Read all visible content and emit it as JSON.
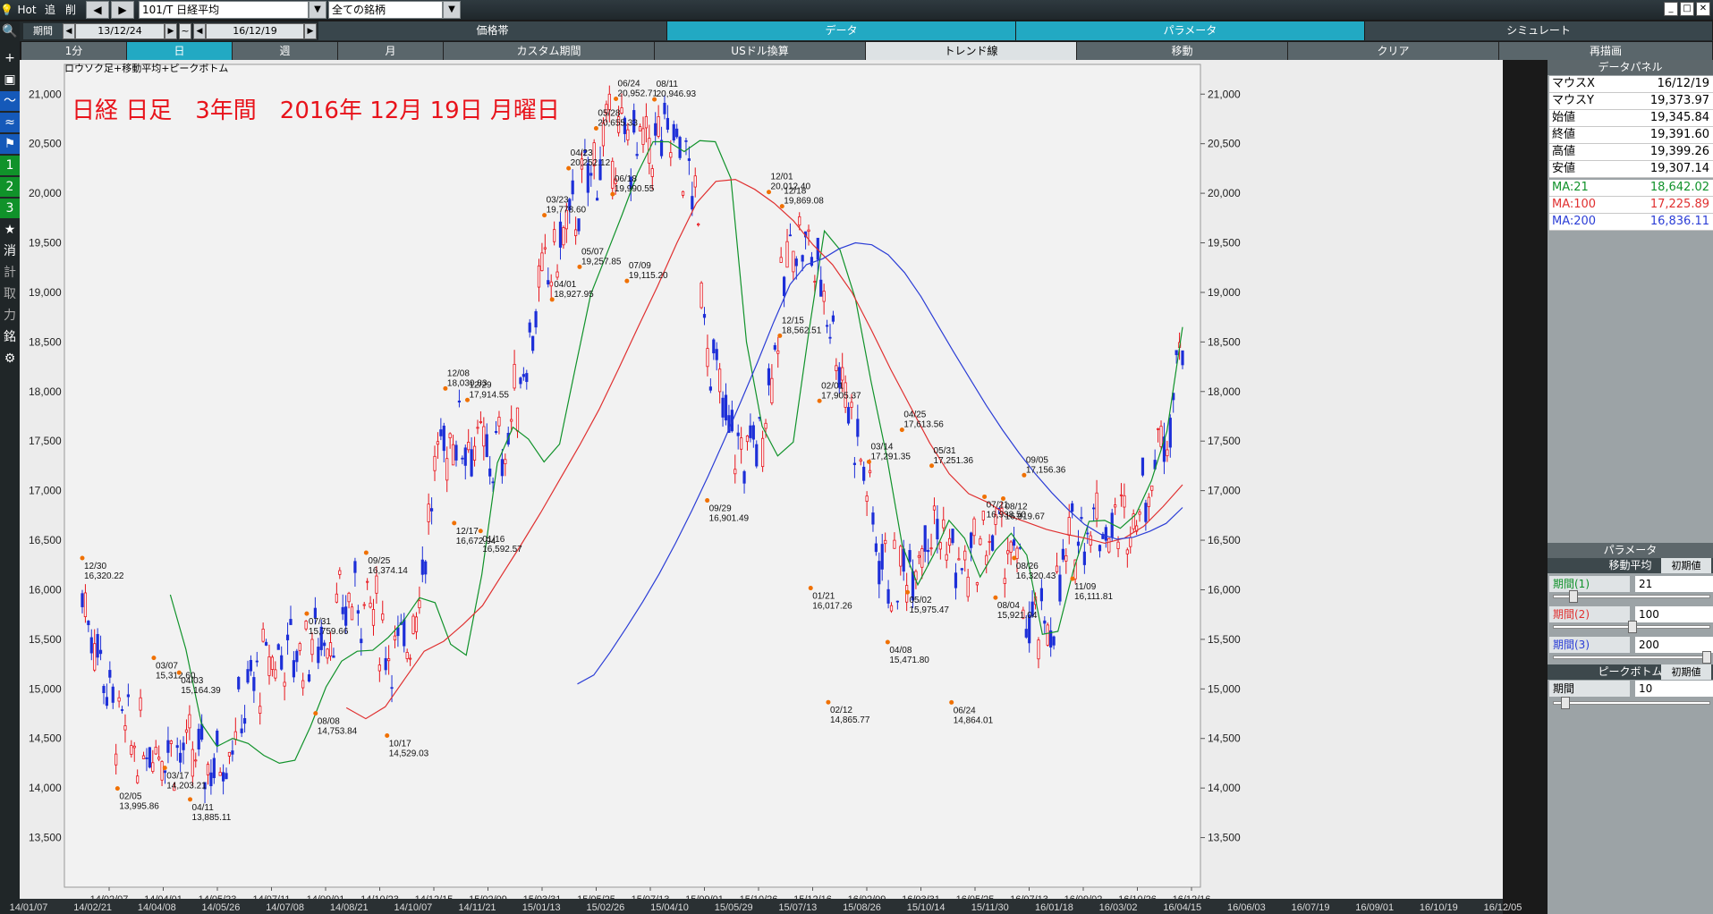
{
  "toolbar": {
    "hot": "Hot",
    "prev": "追",
    "del": "削",
    "symbol": "101/T 日経平均",
    "filter": "全ての銘柄"
  },
  "period": {
    "label": "期間",
    "from": "13/12/24",
    "sep": "~",
    "to": "16/12/19"
  },
  "menu_tabs": [
    "価格帯",
    "データ",
    "パラメータ",
    "シミュレート"
  ],
  "period_tabs": [
    "1分",
    "日",
    "週",
    "月",
    "カスタム期間",
    "USドル換算"
  ],
  "tool_tabs": [
    "トレンド線",
    "移動",
    "クリア",
    "再描画"
  ],
  "left_tools": {
    "one": "1",
    "two": "2",
    "three": "3",
    "k1": "消",
    "k2": "計",
    "k3": "取",
    "k4": "力",
    "k5": "銘"
  },
  "chart": {
    "caption": "ロウソク足+移動平均+ピークボトム",
    "title": "日経 日足　3年間　2016年 12月 19日 月曜日"
  },
  "chart_data": {
    "type": "candlestick",
    "title": "日経 日足　3年間　2016年 12月 19日 月曜日",
    "ylim": [
      13000,
      21300
    ],
    "y_ticks": [
      "13,500",
      "14,000",
      "14,500",
      "15,000",
      "15,500",
      "16,000",
      "16,500",
      "17,000",
      "17,500",
      "18,000",
      "18,500",
      "19,000",
      "19,500",
      "20,000",
      "20,500",
      "21,000"
    ],
    "y_tick_values": [
      13500,
      14000,
      14500,
      15000,
      15500,
      16000,
      16500,
      17000,
      17500,
      18000,
      18500,
      19000,
      19500,
      20000,
      20500,
      21000
    ],
    "x_ticks": [
      "14/02/07",
      "14/04/01",
      "14/05/23",
      "14/07/11",
      "14/09/01",
      "14/10/23",
      "14/12/15",
      "15/02/09",
      "15/03/31",
      "15/05/25",
      "15/07/13",
      "15/09/01",
      "15/10/26",
      "15/12/16",
      "16/02/09",
      "16/03/31",
      "16/05/25",
      "16/07/13",
      "16/09/02",
      "16/10/26",
      "16/12/16"
    ],
    "x_ticks_bottom": [
      "14/01/07",
      "14/02/21",
      "14/04/08",
      "14/05/26",
      "14/07/08",
      "14/08/21",
      "14/10/07",
      "14/11/21",
      "15/01/13",
      "15/02/26",
      "15/04/10",
      "15/05/29",
      "15/07/13",
      "15/08/26",
      "15/10/14",
      "15/11/30",
      "16/01/18",
      "16/03/02",
      "16/04/15",
      "16/06/03",
      "16/07/19",
      "16/09/01",
      "16/10/19",
      "16/12/05"
    ],
    "peaks": [
      {
        "date": "12/30",
        "value": "16,320.22",
        "y": 16320.22,
        "xi": 0.0
      },
      {
        "date": "02/05",
        "value": "13,995.86",
        "y": 13995.86,
        "xi": 0.032
      },
      {
        "date": "03/07",
        "value": "15,312.60",
        "y": 15312.6,
        "xi": 0.065
      },
      {
        "date": "03/17",
        "value": "14,203.21",
        "y": 14203.21,
        "xi": 0.075
      },
      {
        "date": "04/03",
        "value": "15,164.39",
        "y": 15164.39,
        "xi": 0.088
      },
      {
        "date": "04/11",
        "value": "13,885.11",
        "y": 13885.11,
        "xi": 0.098
      },
      {
        "date": "07/31",
        "value": "15,759.66",
        "y": 15759.66,
        "xi": 0.204
      },
      {
        "date": "08/08",
        "value": "14,753.84",
        "y": 14753.84,
        "xi": 0.212
      },
      {
        "date": "09/25",
        "value": "16,374.14",
        "y": 16374.14,
        "xi": 0.258
      },
      {
        "date": "10/17",
        "value": "14,529.03",
        "y": 14529.03,
        "xi": 0.277
      },
      {
        "date": "12/08",
        "value": "18,030.83",
        "y": 18030.83,
        "xi": 0.33
      },
      {
        "date": "12/17",
        "value": "16,672.94",
        "y": 16672.94,
        "xi": 0.338
      },
      {
        "date": "12/29",
        "value": "17,914.55",
        "y": 17914.55,
        "xi": 0.35
      },
      {
        "date": "01/16",
        "value": "16,592.57",
        "y": 16592.57,
        "xi": 0.362
      },
      {
        "date": "03/23",
        "value": "19,778.60",
        "y": 19778.6,
        "xi": 0.42
      },
      {
        "date": "04/01",
        "value": "18,927.95",
        "y": 18927.95,
        "xi": 0.427
      },
      {
        "date": "04/23",
        "value": "20,252.12",
        "y": 20252.12,
        "xi": 0.442
      },
      {
        "date": "05/07",
        "value": "19,257.85",
        "y": 19257.85,
        "xi": 0.452
      },
      {
        "date": "05/28",
        "value": "20,655.33",
        "y": 20655.33,
        "xi": 0.467
      },
      {
        "date": "06/24",
        "value": "20,952.71",
        "y": 20952.71,
        "xi": 0.485
      },
      {
        "date": "06/18",
        "value": "19,990.55",
        "y": 19990.55,
        "xi": 0.482
      },
      {
        "date": "07/09",
        "value": "19,115.20",
        "y": 19115.2,
        "xi": 0.495
      },
      {
        "date": "08/11",
        "value": "20,946.93",
        "y": 20946.93,
        "xi": 0.52
      },
      {
        "date": "09/29",
        "value": "16,901.49",
        "y": 16901.49,
        "xi": 0.568
      },
      {
        "date": "12/01",
        "value": "20,012.40",
        "y": 20012.4,
        "xi": 0.624
      },
      {
        "date": "12/18",
        "value": "19,869.08",
        "y": 19869.08,
        "xi": 0.636
      },
      {
        "date": "12/15",
        "value": "18,562.51",
        "y": 18562.51,
        "xi": 0.634
      },
      {
        "date": "02/01",
        "value": "17,905.37",
        "y": 17905.37,
        "xi": 0.67
      },
      {
        "date": "01/21",
        "value": "16,017.26",
        "y": 16017.26,
        "xi": 0.662
      },
      {
        "date": "02/12",
        "value": "14,865.77",
        "y": 14865.77,
        "xi": 0.678
      },
      {
        "date": "03/14",
        "value": "17,291.35",
        "y": 17291.35,
        "xi": 0.715
      },
      {
        "date": "04/08",
        "value": "15,471.80",
        "y": 15471.8,
        "xi": 0.732
      },
      {
        "date": "04/25",
        "value": "17,613.56",
        "y": 17613.56,
        "xi": 0.745
      },
      {
        "date": "05/02",
        "value": "15,975.47",
        "y": 15975.47,
        "xi": 0.75
      },
      {
        "date": "05/31",
        "value": "17,251.36",
        "y": 17251.36,
        "xi": 0.772
      },
      {
        "date": "06/24",
        "value": "14,864.01",
        "y": 14864.01,
        "xi": 0.79
      },
      {
        "date": "07/21",
        "value": "16,938.50",
        "y": 16938.5,
        "xi": 0.82
      },
      {
        "date": "08/04",
        "value": "15,921.04",
        "y": 15921.04,
        "xi": 0.83
      },
      {
        "date": "08/12",
        "value": "16,919.67",
        "y": 16919.67,
        "xi": 0.837
      },
      {
        "date": "08/26",
        "value": "16,320.43",
        "y": 16320.43,
        "xi": 0.847
      },
      {
        "date": "09/05",
        "value": "17,156.36",
        "y": 17156.36,
        "xi": 0.856
      },
      {
        "date": "11/09",
        "value": "16,111.81",
        "y": 16111.81,
        "xi": 0.9
      }
    ],
    "series": [
      {
        "name": "MA:21",
        "color": "#10922a",
        "values": [
          15950,
          15400,
          14650,
          14420,
          14500,
          14450,
          14330,
          14250,
          14280,
          14620,
          15020,
          15280,
          15380,
          15390,
          15520,
          15690,
          15920,
          15870,
          15450,
          15340,
          16150,
          17280,
          17640,
          17520,
          17290,
          17470,
          18230,
          18980,
          19380,
          19780,
          20200,
          20520,
          20520,
          20420,
          20530,
          20520,
          20150,
          18500,
          17650,
          17350,
          17490,
          18600,
          19620,
          19430,
          18930,
          18100,
          17350,
          16450,
          16050,
          16350,
          16700,
          16520,
          16130,
          16400,
          16570,
          16350,
          15550,
          15580,
          16200,
          16690,
          16700,
          16620,
          16760,
          17100,
          17600,
          18650
        ]
      },
      {
        "name": "MA:100",
        "color": "#e03030",
        "values": [
          14810,
          14700,
          14820,
          15100,
          15380,
          15480,
          15650,
          15840,
          16150,
          16460,
          16780,
          17120,
          17460,
          17820,
          18230,
          18650,
          19060,
          19500,
          19900,
          20120,
          20140,
          20040,
          19900,
          19720,
          19480,
          19280,
          19000,
          18620,
          18220,
          17850,
          17480,
          17170,
          16970,
          16880,
          16750,
          16680,
          16610,
          16560,
          16520,
          16470,
          16520,
          16640,
          16840,
          17060
        ]
      },
      {
        "name": "MA:200",
        "color": "#2b3dd6",
        "values": [
          15050,
          15140,
          15370,
          15620,
          15880,
          16160,
          16470,
          16800,
          17150,
          17520,
          17900,
          18290,
          18700,
          19080,
          19280,
          19340,
          19440,
          19500,
          19480,
          19380,
          19200,
          18960,
          18680,
          18400,
          18130,
          17860,
          17610,
          17380,
          17170,
          16980,
          16810,
          16660,
          16560,
          16510,
          16530,
          16590,
          16670,
          16830
        ]
      }
    ]
  },
  "data_panel": {
    "title": "データパネル",
    "rows": [
      {
        "k": "マウスX",
        "v": "16/12/19"
      },
      {
        "k": "マウスY",
        "v": "19,373.97"
      },
      {
        "k": "始値",
        "v": "19,345.84"
      },
      {
        "k": "終値",
        "v": "19,391.60"
      },
      {
        "k": "高値",
        "v": "19,399.26"
      },
      {
        "k": "安値",
        "v": "19,307.14"
      }
    ],
    "ma_rows": [
      {
        "k": "MA:21",
        "v": "18,642.02",
        "color": "#10922a"
      },
      {
        "k": "MA:100",
        "v": "17,225.89",
        "color": "#e03030"
      },
      {
        "k": "MA:200",
        "v": "16,836.11",
        "color": "#2b3dd6"
      }
    ]
  },
  "param_panel": {
    "title": "パラメータ",
    "ma_title": "移動平均",
    "reset": "初期値",
    "periods": [
      {
        "label": "期間(1)",
        "value": "21",
        "color": "#10922a",
        "level": 0.1
      },
      {
        "label": "期間(2)",
        "value": "100",
        "color": "#e03030",
        "level": 0.5
      },
      {
        "label": "期間(3)",
        "value": "200",
        "color": "#2b3dd6",
        "level": 1.0
      }
    ],
    "pb_title": "ピークボトム",
    "pb_label": "期間",
    "pb_value": "10",
    "pb_level": 0.05
  }
}
